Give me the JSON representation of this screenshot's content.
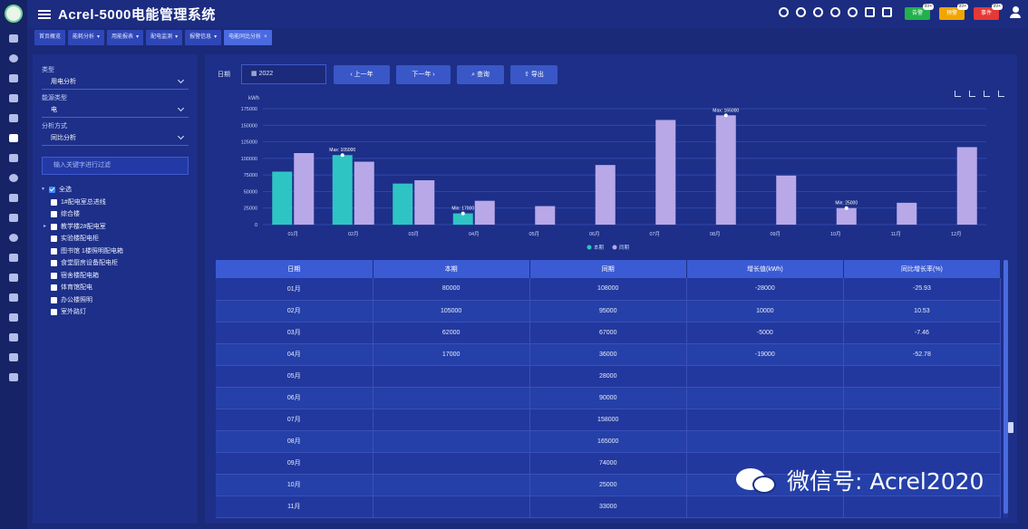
{
  "header": {
    "title": "Acrel-5000电能管理系统",
    "alarms": [
      {
        "label": "告警",
        "count": "99+",
        "color": "#22b14c"
      },
      {
        "label": "预警",
        "count": "99+",
        "color": "#f0a500"
      },
      {
        "label": "事件",
        "count": "99+",
        "color": "#e53935"
      }
    ]
  },
  "nav_tabs": [
    {
      "label": "首页概览"
    },
    {
      "label": "能耗分析"
    },
    {
      "label": "用能报表"
    },
    {
      "label": "配电监测"
    },
    {
      "label": "报警信息"
    },
    {
      "label": "电能同比分析"
    }
  ],
  "filters": {
    "type_label": "类型",
    "type_value": "用电分析",
    "energy_label": "能源类型",
    "energy_value": "电",
    "analysis_label": "分析方式",
    "analysis_value": "同比分析",
    "search_placeholder": "输入关键字进行过滤"
  },
  "tree": {
    "root": "全选",
    "items": [
      "1#配电室总进线",
      "综合楼",
      "教学楼2#配电室",
      "实验楼配电柜",
      "图书馆   1楼照明配电箱",
      "食堂厨房设备配电柜",
      "宿舍楼配电箱",
      "体育馆配电",
      "办公楼照明",
      "室外路灯"
    ]
  },
  "toolbar": {
    "date_label": "日期",
    "date_value": "2022",
    "prev_btn": "上一年",
    "next_btn": "下一年",
    "query_btn": "查询",
    "export_btn": "导出"
  },
  "chart_data": {
    "type": "bar",
    "ylabel": "kWh",
    "ylim": [
      0,
      175000
    ],
    "yticks": [
      0,
      25000,
      50000,
      75000,
      100000,
      125000,
      150000,
      175000
    ],
    "categories": [
      "01月",
      "02月",
      "03月",
      "04月",
      "05月",
      "06月",
      "07月",
      "08月",
      "09月",
      "10月",
      "11月",
      "12月"
    ],
    "series": [
      {
        "name": "本期",
        "color": "#2fc4c4",
        "values": [
          80000,
          105000,
          62000,
          17000,
          null,
          null,
          null,
          null,
          null,
          null,
          null,
          null
        ]
      },
      {
        "name": "同期",
        "color": "#b8a8e8",
        "values": [
          108000,
          95000,
          67000,
          36000,
          28000,
          90000,
          158000,
          165000,
          74000,
          25000,
          33000,
          117000
        ]
      }
    ],
    "annotations": [
      {
        "category": "02月",
        "series": 0,
        "label": "Max: 105000"
      },
      {
        "category": "04月",
        "series": 0,
        "label": "Min: 17000"
      },
      {
        "category": "08月",
        "series": 1,
        "label": "Max: 165000"
      },
      {
        "category": "10月",
        "series": 1,
        "label": "Min: 25000"
      }
    ],
    "legend_position": "bottom-center"
  },
  "table": {
    "headers": [
      "日期",
      "本期",
      "同期",
      "增长值(kWh)",
      "同比增长率(%)"
    ],
    "rows": [
      [
        "01月",
        "80000",
        "108000",
        "-28000",
        "-25.93"
      ],
      [
        "02月",
        "105000",
        "95000",
        "10000",
        "10.53"
      ],
      [
        "03月",
        "62000",
        "67000",
        "-5000",
        "-7.46"
      ],
      [
        "04月",
        "17000",
        "36000",
        "-19000",
        "-52.78"
      ],
      [
        "05月",
        "",
        "28000",
        "",
        ""
      ],
      [
        "06月",
        "",
        "90000",
        "",
        ""
      ],
      [
        "07月",
        "",
        "158000",
        "",
        ""
      ],
      [
        "08月",
        "",
        "165000",
        "",
        ""
      ],
      [
        "09月",
        "",
        "74000",
        "",
        ""
      ],
      [
        "10月",
        "",
        "25000",
        "",
        ""
      ],
      [
        "11月",
        "",
        "33000",
        "",
        ""
      ]
    ]
  },
  "watermark": "微信号: Acrel2020"
}
